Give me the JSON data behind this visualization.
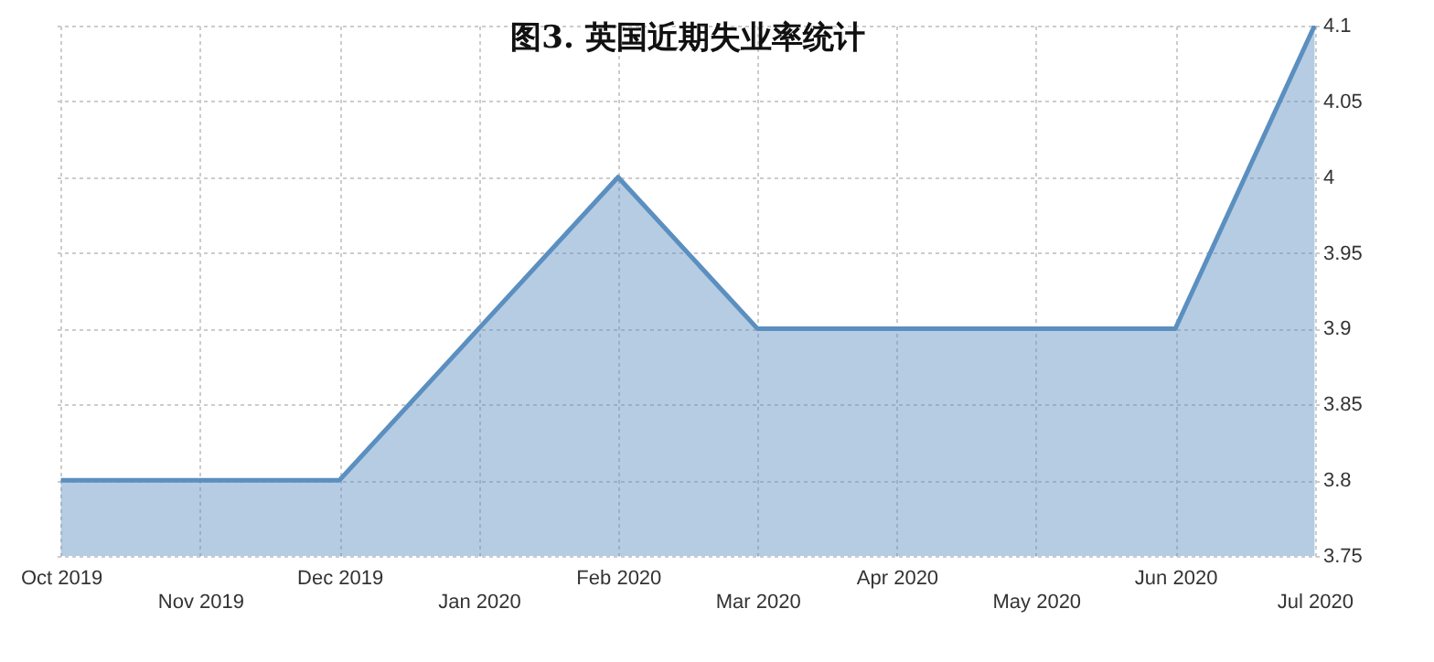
{
  "chart_data": {
    "type": "area",
    "title": "图3. 英国近期失业率统计",
    "categories": [
      "Oct 2019",
      "Nov 2019",
      "Dec 2019",
      "Jan 2020",
      "Feb 2020",
      "Mar 2020",
      "Apr 2020",
      "May 2020",
      "Jun 2020",
      "Jul 2020"
    ],
    "series": [
      {
        "color": "#5b8fc0",
        "values": [
          3.8,
          3.8,
          3.8,
          3.9,
          4.0,
          3.9,
          3.9,
          3.9,
          3.9,
          4.1
        ]
      }
    ],
    "ylim": [
      3.75,
      4.1
    ],
    "yticks": [
      3.75,
      3.8,
      3.85,
      3.9,
      3.95,
      4,
      4.05,
      4.1
    ],
    "grid": true
  }
}
